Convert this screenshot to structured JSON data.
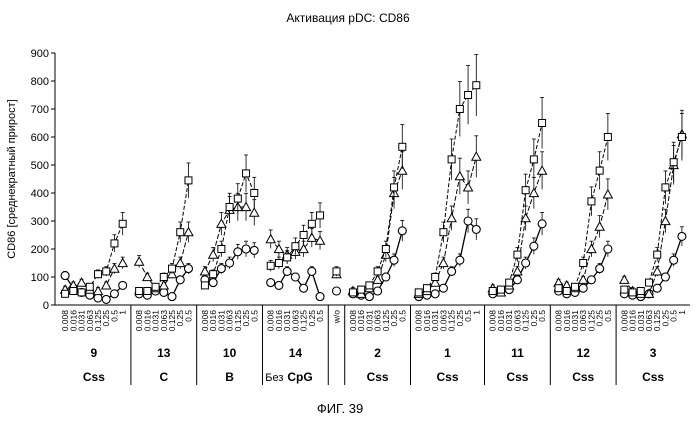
{
  "chart_data": {
    "type": "line",
    "title": "Активация pDC: CD86",
    "ylabel": "CD86 [среднекратный прирост]",
    "ylim": [
      0,
      900
    ],
    "yticks": [
      0,
      100,
      200,
      300,
      400,
      500,
      600,
      700,
      800,
      900
    ],
    "figure_caption": "ФИГ. 39",
    "concentrations": [
      "0.008",
      "0.016",
      "0.031",
      "0.063",
      "0.125",
      "0.25",
      "0.5",
      "1"
    ],
    "series_markers": [
      "circle",
      "triangle",
      "square"
    ],
    "groups": [
      {
        "number": "9",
        "type": "Css",
        "labels": [
          "0.008",
          "0.016",
          "0.031",
          "0.063",
          "0.125",
          "0.25",
          "0.5",
          "1"
        ],
        "series": [
          {
            "marker": "circle",
            "values": [
              105,
              60,
              45,
              35,
              25,
              20,
              40,
              70
            ]
          },
          {
            "marker": "triangle",
            "values": [
              55,
              70,
              80,
              55,
              50,
              70,
              130,
              150
            ]
          },
          {
            "marker": "square",
            "values": [
              40,
              50,
              45,
              65,
              110,
              120,
              220,
              290
            ]
          }
        ]
      },
      {
        "number": "13",
        "type": "C",
        "labels": [
          "0.008",
          "0.016",
          "0.031",
          "0.063",
          "0.125",
          "0.25",
          "0.5"
        ],
        "series": [
          {
            "marker": "circle",
            "values": [
              40,
              35,
              50,
              45,
              30,
              90,
              130
            ]
          },
          {
            "marker": "triangle",
            "values": [
              155,
              100,
              60,
              70,
              110,
              150,
              260
            ]
          },
          {
            "marker": "square",
            "values": [
              50,
              50,
              65,
              100,
              130,
              260,
              445
            ]
          }
        ]
      },
      {
        "number": "10",
        "type": "B",
        "labels": [
          "0.008",
          "0.016",
          "0.031",
          "0.063",
          "0.125",
          "0.25",
          "0.5"
        ],
        "series": [
          {
            "marker": "circle",
            "values": [
              90,
              80,
              130,
              150,
              190,
              200,
              195
            ]
          },
          {
            "marker": "triangle",
            "values": [
              120,
              180,
              290,
              340,
              350,
              350,
              330
            ]
          },
          {
            "marker": "square",
            "values": [
              70,
              110,
              200,
              350,
              380,
              470,
              400
            ]
          }
        ]
      },
      {
        "number": "14",
        "type": "CpG",
        "type_prefix": "Без",
        "labels": [
          "0.008",
          "0.016",
          "0.031",
          "0.063",
          "0.125",
          "0.25",
          "0.5"
        ],
        "series": [
          {
            "marker": "circle",
            "values": [
              80,
              70,
              120,
              100,
              60,
              120,
              30
            ]
          },
          {
            "marker": "triangle",
            "values": [
              235,
              200,
              180,
              190,
              200,
              240,
              230
            ]
          },
          {
            "marker": "square",
            "values": [
              140,
              150,
              170,
              210,
              250,
              290,
              320
            ]
          }
        ]
      },
      {
        "number": "",
        "type": "",
        "labels": [
          "w/o"
        ],
        "series": [
          {
            "marker": "circle",
            "values": [
              50
            ]
          },
          {
            "marker": "triangle",
            "values": [
              110
            ]
          },
          {
            "marker": "square",
            "values": [
              120
            ]
          }
        ]
      },
      {
        "number": "2",
        "type": "Css",
        "labels": [
          "0.008",
          "0.016",
          "0.031",
          "0.063",
          "0.125",
          "0.25",
          "0.5"
        ],
        "series": [
          {
            "marker": "circle",
            "values": [
              40,
              35,
              30,
              50,
              100,
              160,
              265
            ]
          },
          {
            "marker": "triangle",
            "values": [
              50,
              40,
              60,
              90,
              180,
              400,
              480
            ]
          },
          {
            "marker": "square",
            "values": [
              45,
              55,
              70,
              120,
              200,
              420,
              565
            ]
          }
        ]
      },
      {
        "number": "1",
        "type": "Css",
        "labels": [
          "0.008",
          "0.016",
          "0.031",
          "0.063",
          "0.125",
          "0.25",
          "0.5",
          "1"
        ],
        "series": [
          {
            "marker": "circle",
            "values": [
              30,
              35,
              40,
              60,
              120,
              160,
              300,
              270
            ]
          },
          {
            "marker": "triangle",
            "values": [
              40,
              50,
              80,
              150,
              310,
              460,
              420,
              530
            ]
          },
          {
            "marker": "square",
            "values": [
              45,
              60,
              100,
              260,
              520,
              700,
              750,
              785
            ]
          }
        ]
      },
      {
        "number": "11",
        "type": "Css",
        "labels": [
          "0.008",
          "0.016",
          "0.031",
          "0.063",
          "0.125",
          "0.25",
          "0.5"
        ],
        "series": [
          {
            "marker": "circle",
            "values": [
              40,
              50,
              55,
              90,
              150,
              210,
              290
            ]
          },
          {
            "marker": "triangle",
            "values": [
              60,
              45,
              70,
              120,
              310,
              400,
              480
            ]
          },
          {
            "marker": "square",
            "values": [
              50,
              55,
              80,
              180,
              410,
              520,
              650
            ]
          }
        ]
      },
      {
        "number": "12",
        "type": "Css",
        "labels": [
          "0.008",
          "0.016",
          "0.031",
          "0.063",
          "0.125",
          "0.25",
          "0.5"
        ],
        "series": [
          {
            "marker": "circle",
            "values": [
              50,
              40,
              45,
              60,
              90,
              130,
              200
            ]
          },
          {
            "marker": "triangle",
            "values": [
              80,
              70,
              60,
              90,
              200,
              280,
              395
            ]
          },
          {
            "marker": "square",
            "values": [
              60,
              50,
              65,
              150,
              370,
              480,
              600
            ]
          }
        ]
      },
      {
        "number": "3",
        "type": "Css",
        "labels": [
          "0.008",
          "0.016",
          "0.031",
          "0.063",
          "0.125",
          "0.25",
          "0.5",
          "1"
        ],
        "series": [
          {
            "marker": "circle",
            "values": [
              40,
              35,
              30,
              40,
              60,
              100,
              160,
              245
            ]
          },
          {
            "marker": "triangle",
            "values": [
              90,
              50,
              40,
              40,
              120,
              300,
              500,
              610
            ]
          },
          {
            "marker": "square",
            "values": [
              55,
              45,
              50,
              80,
              180,
              420,
              510,
              600
            ]
          }
        ]
      }
    ]
  }
}
